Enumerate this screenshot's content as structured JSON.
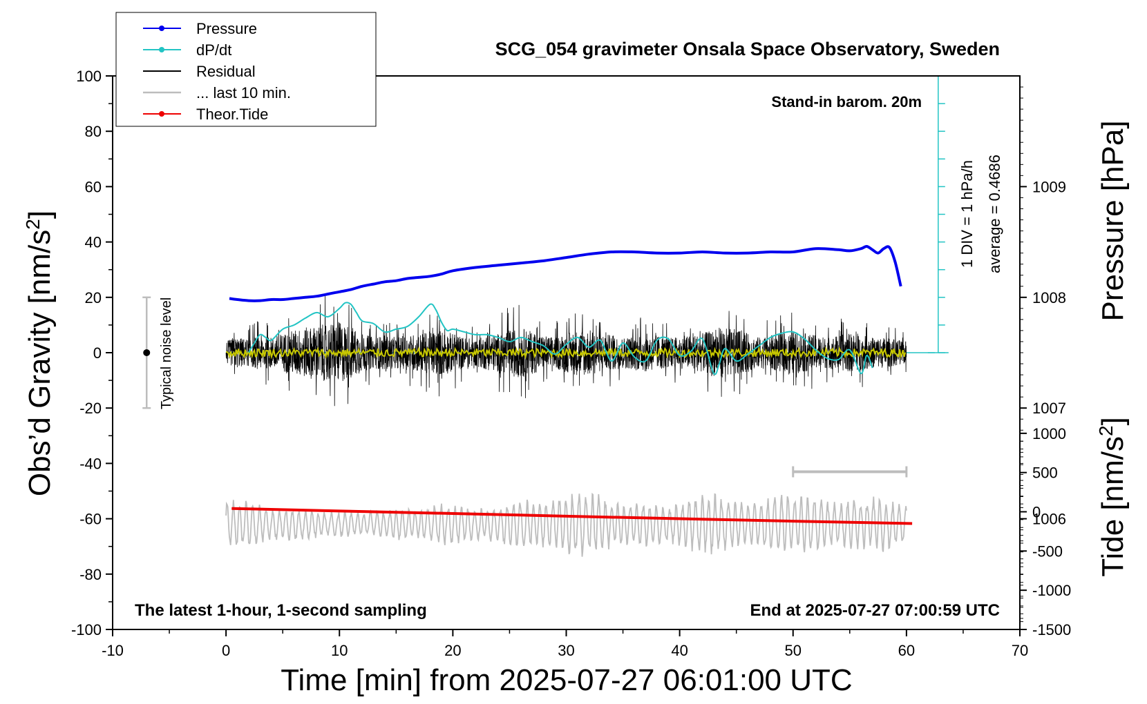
{
  "chart_data": {
    "type": "line",
    "title": "SCG_054 gravimeter Onsala Space Observatory, Sweden",
    "xlabel": "Time [min] from 2025-07-27 06:01:00 UTC",
    "ylabel": "Obs’d Gravity [nm/s²]",
    "y2label": "Pressure [hPa]",
    "y3label": "Tide [nm/s²]",
    "xlim": [
      -10,
      70
    ],
    "ylim": [
      -100,
      100
    ],
    "pressure_lim": [
      1005,
      1010
    ],
    "tide_lim": [
      -1500,
      1500
    ],
    "x_ticks": [
      "-10",
      "0",
      "10",
      "20",
      "30",
      "40",
      "50",
      "60",
      "70"
    ],
    "y_ticks": [
      "-100",
      "-80",
      "-60",
      "-40",
      "-20",
      "0",
      "20",
      "40",
      "60",
      "80",
      "100"
    ],
    "pressure_ticks": [
      "1006",
      "1007",
      "1008",
      "1009"
    ],
    "tide_ticks": [
      "-1500",
      "-1000",
      "-500",
      "0",
      "500",
      "1000"
    ],
    "legend": [
      {
        "label": "Pressure",
        "color": "#0000ee",
        "marker": true
      },
      {
        "label": "dP/dt",
        "color": "#22c4c4",
        "marker": true
      },
      {
        "label": "Residual",
        "color": "#000000",
        "marker": false
      },
      {
        "label": "... last 10 min.",
        "color": "#bdbdbd",
        "marker": false
      },
      {
        "label": "Theor.Tide",
        "color": "#ee0000",
        "marker": true
      }
    ],
    "annotations": {
      "stand_in": "Stand-in barom. 20m",
      "div": "1 DIV = 1 hPa/h",
      "average": "average = 0.4686",
      "noise": "Typical noise level",
      "latest": "The latest 1-hour, 1-second sampling",
      "end": "End at 2025-07-27 07:00:59 UTC"
    },
    "series": [
      {
        "name": "Pressure",
        "axis": "pressure",
        "color": "#0000ee",
        "x": [
          0.3,
          1,
          2,
          3,
          4,
          5,
          6,
          7,
          8,
          9,
          10,
          11,
          12,
          13,
          14,
          15,
          16,
          17,
          18,
          19,
          20,
          22,
          24,
          26,
          28,
          30,
          32,
          34,
          36,
          38,
          40,
          42,
          44,
          46,
          48,
          50,
          52,
          54,
          55,
          56,
          56.5,
          57,
          57.5,
          58,
          58.5,
          59,
          59.5
        ],
        "values": [
          1007.99,
          1007.98,
          1007.97,
          1007.97,
          1007.98,
          1007.98,
          1007.99,
          1008.0,
          1008.01,
          1008.03,
          1008.05,
          1008.07,
          1008.1,
          1008.12,
          1008.14,
          1008.15,
          1008.17,
          1008.18,
          1008.19,
          1008.21,
          1008.24,
          1008.27,
          1008.29,
          1008.31,
          1008.33,
          1008.36,
          1008.39,
          1008.41,
          1008.41,
          1008.4,
          1008.4,
          1008.41,
          1008.4,
          1008.4,
          1008.41,
          1008.41,
          1008.44,
          1008.43,
          1008.42,
          1008.44,
          1008.46,
          1008.43,
          1008.4,
          1008.44,
          1008.45,
          1008.32,
          1008.1
        ]
      },
      {
        "name": "dP/dt",
        "axis": "pressure",
        "color": "#22c4c4",
        "x": [
          2,
          2.5,
          3,
          3.5,
          4,
          5,
          6,
          7,
          8,
          9,
          10,
          10.5,
          11,
          11.5,
          12,
          13,
          14,
          15,
          16,
          17,
          18,
          18.5,
          19,
          19.5,
          20,
          21,
          22,
          23,
          24,
          25,
          26,
          27,
          28,
          29,
          30,
          31,
          32,
          33,
          34,
          35,
          36,
          37,
          38,
          39,
          40,
          41,
          42,
          43,
          43.5,
          44,
          45,
          46,
          47,
          48,
          49,
          50,
          51,
          52,
          53,
          54,
          55,
          56,
          56.5,
          57
        ],
        "values": [
          0.01,
          0.35,
          0.65,
          0.55,
          0.45,
          0.85,
          1.0,
          1.25,
          1.45,
          1.3,
          1.6,
          1.8,
          1.75,
          1.45,
          1.15,
          1.05,
          0.75,
          0.85,
          0.95,
          1.3,
          1.75,
          1.55,
          1.1,
          0.8,
          0.85,
          0.75,
          0.65,
          0.65,
          0.55,
          0.4,
          0.55,
          0.4,
          0.25,
          -0.05,
          0.3,
          0.55,
          0.2,
          0.45,
          -0.3,
          0.35,
          -0.15,
          -0.3,
          0.45,
          0.5,
          -0.1,
          0.05,
          0.5,
          -0.75,
          -0.4,
          0.15,
          -0.3,
          -0.05,
          0.25,
          0.55,
          0.7,
          0.75,
          0.5,
          0.1,
          -0.2,
          -0.25,
          0.1,
          -0.75,
          -0.1,
          -0.55
        ]
      },
      {
        "name": "Residual",
        "axis": "gravity",
        "color": "#000000",
        "x_range": [
          0,
          60
        ],
        "amplitude_envelope": [
          6,
          8,
          7,
          9,
          8,
          10,
          12,
          13,
          14,
          15,
          16,
          14,
          10,
          8,
          9,
          8,
          9,
          10,
          11,
          12,
          10,
          8,
          7,
          9,
          10,
          12,
          13,
          11,
          9,
          8,
          10,
          12,
          12,
          10,
          9,
          8,
          9,
          10,
          9,
          8,
          8,
          9,
          10,
          12,
          13,
          12,
          10,
          8,
          9,
          10,
          11,
          10,
          9,
          8,
          9,
          10,
          9,
          8,
          8,
          7,
          6
        ]
      },
      {
        "name": "... last 10 min.",
        "axis": "gravity",
        "color": "#bdbdbd",
        "x_range": [
          0,
          60
        ],
        "offset": -62,
        "amplitude_envelope": [
          8,
          10,
          9,
          7,
          6,
          6,
          6,
          6,
          5,
          5,
          5,
          5,
          5,
          5,
          5,
          6,
          6,
          6,
          7,
          8,
          8,
          7,
          6,
          6,
          7,
          9,
          10,
          9,
          9,
          10,
          12,
          13,
          12,
          11,
          9,
          8,
          8,
          9,
          8,
          7,
          8,
          10,
          11,
          12,
          10,
          9,
          8,
          9,
          10,
          11,
          12,
          11,
          10,
          9,
          8,
          9,
          10,
          10,
          11,
          8,
          7
        ]
      },
      {
        "name": "Residual filtered",
        "axis": "gravity",
        "color": "#c8c800",
        "x_range": [
          0,
          60
        ],
        "amplitude": 1.5
      },
      {
        "name": "Theor.Tide",
        "axis": "tide",
        "color": "#ee0000",
        "x": [
          0.5,
          10,
          20,
          30,
          40,
          50,
          60.5
        ],
        "values": [
          42,
          10,
          -22,
          -56,
          -88,
          -120,
          -150
        ]
      }
    ],
    "ten_min_bar": {
      "x": [
        50,
        60
      ],
      "tide_value": 510
    },
    "noise_bar": {
      "x": -7,
      "y": [
        -20,
        20
      ],
      "center": 0
    }
  }
}
